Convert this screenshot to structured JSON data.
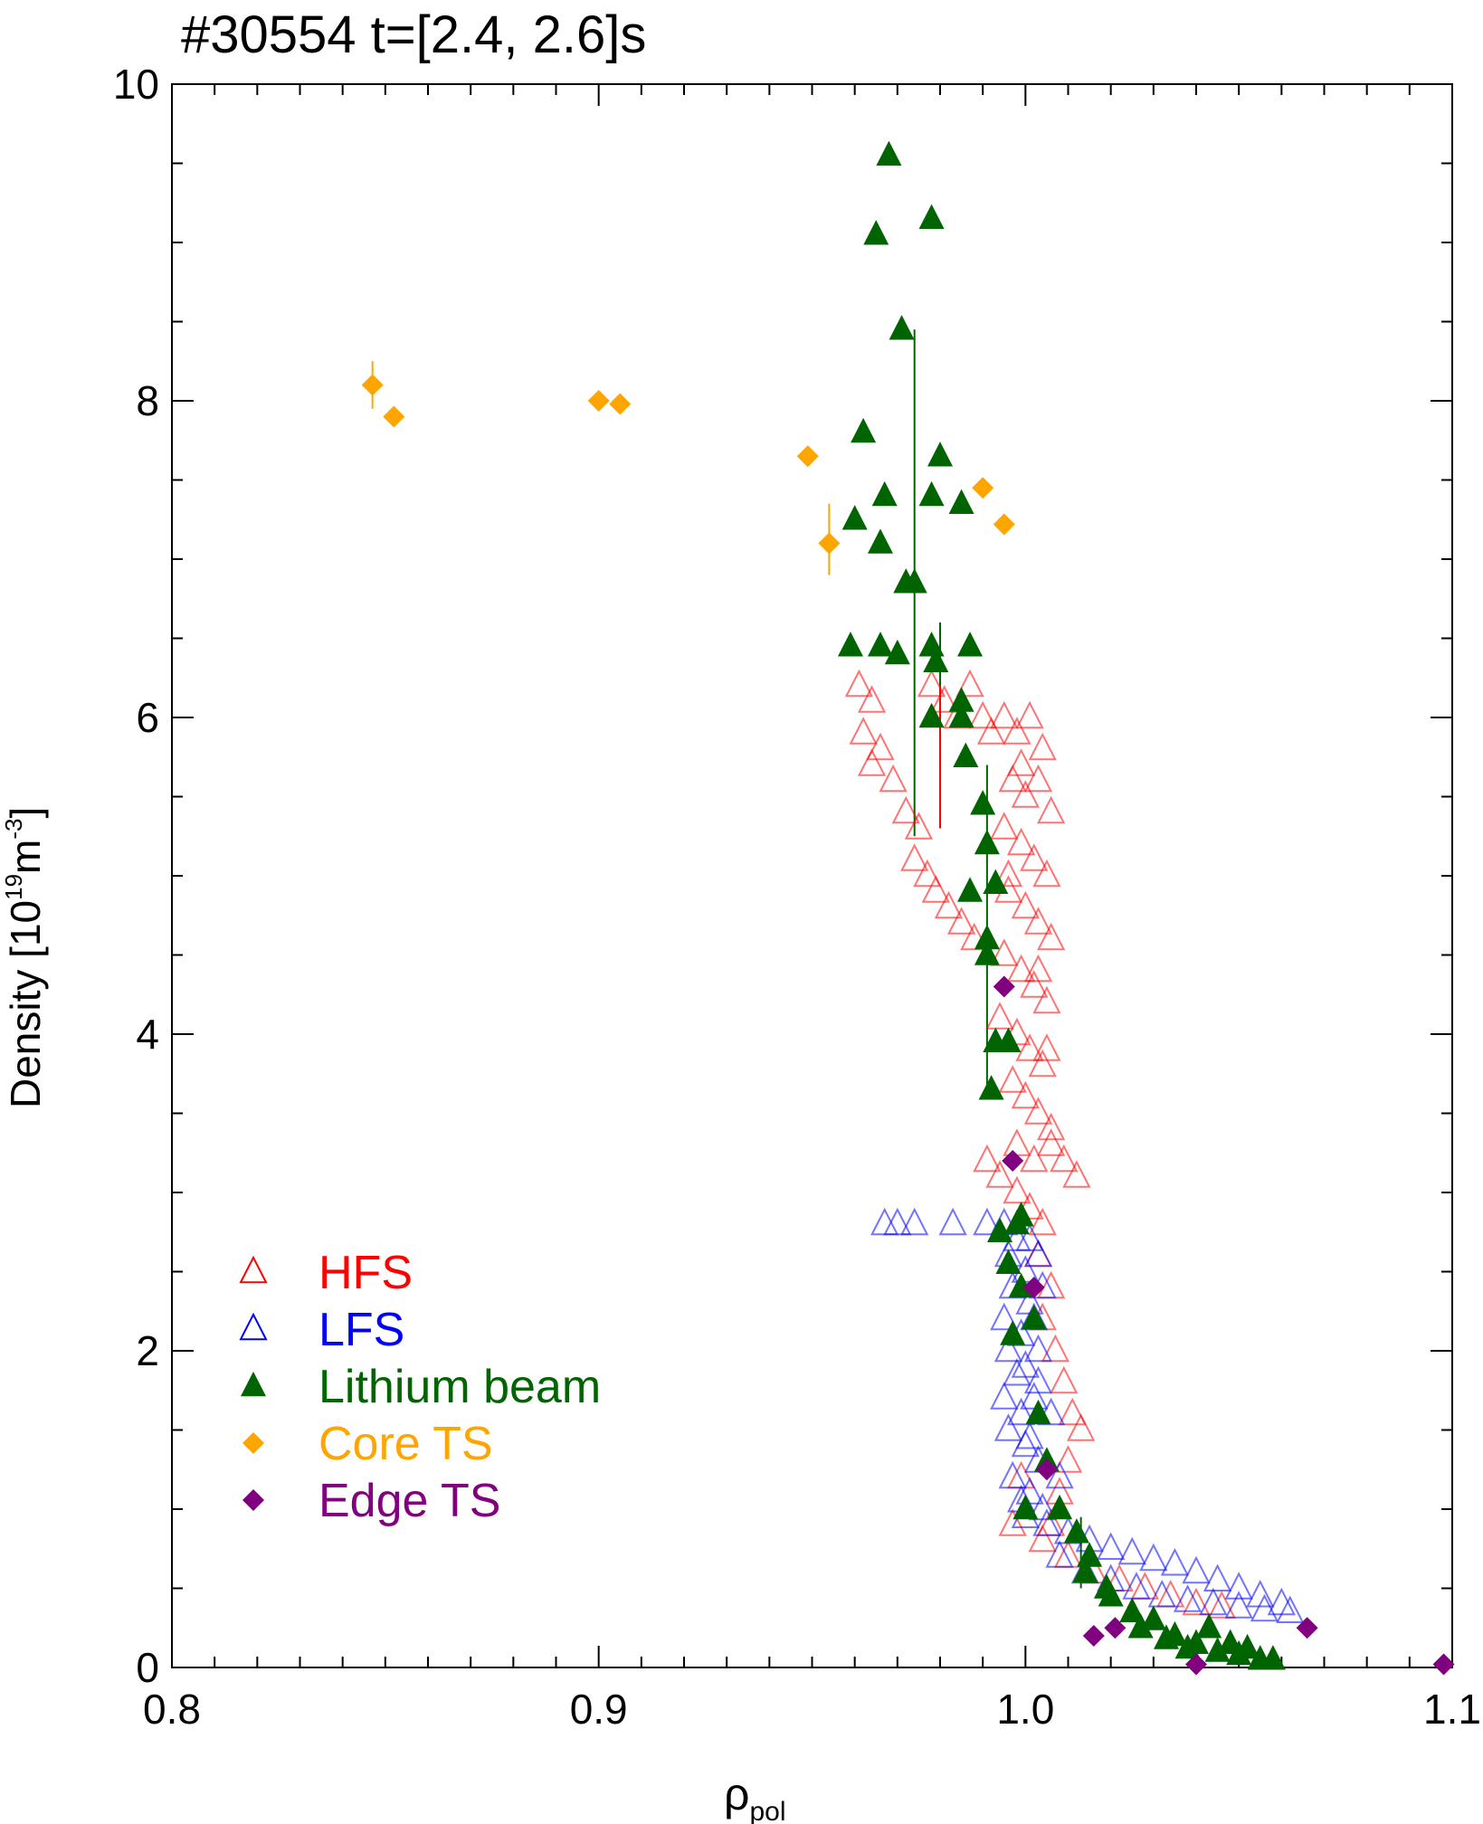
{
  "chart_data": {
    "type": "scatter",
    "title": "#30554 t=[2.4, 2.6]s",
    "xlabel": "ρ",
    "xlabel_sub": "pol",
    "ylabel": "Density [10",
    "ylabel_sup1": "19",
    "ylabel_mid": "m",
    "ylabel_sup2": "-3",
    "ylabel_end": "]",
    "xlim": [
      0.8,
      1.1
    ],
    "ylim": [
      0,
      10
    ],
    "x_ticks": [
      0.8,
      0.9,
      1.0,
      1.1
    ],
    "x_tick_labels": [
      "0.8",
      "0.9",
      "1.0",
      "1.1"
    ],
    "y_ticks": [
      0,
      2,
      4,
      6,
      8,
      10
    ],
    "y_tick_labels": [
      "0",
      "2",
      "4",
      "6",
      "8",
      "10"
    ],
    "grid": false,
    "legend_position": "bottom-left",
    "series": [
      {
        "name": "HFS",
        "marker": "triangle-open",
        "color": "#ff0000",
        "points": [
          [
            0.961,
            6.2
          ],
          [
            0.964,
            6.1
          ],
          [
            0.962,
            5.9
          ],
          [
            0.966,
            5.8
          ],
          [
            0.964,
            5.7
          ],
          [
            0.969,
            5.6
          ],
          [
            0.972,
            5.4
          ],
          [
            0.975,
            5.3
          ],
          [
            0.974,
            5.1
          ],
          [
            0.977,
            5.0
          ],
          [
            0.979,
            4.9
          ],
          [
            0.982,
            4.8
          ],
          [
            0.985,
            4.7
          ],
          [
            0.988,
            4.6
          ],
          [
            0.978,
            6.2
          ],
          [
            0.981,
            6.1
          ],
          [
            0.984,
            6.0
          ],
          [
            0.987,
            6.2
          ],
          [
            0.99,
            6.0
          ],
          [
            0.992,
            5.9
          ],
          [
            0.995,
            6.0
          ],
          [
            0.998,
            5.9
          ],
          [
            1.001,
            6.0
          ],
          [
            1.004,
            5.8
          ],
          [
            0.997,
            5.6
          ],
          [
            1.0,
            5.5
          ],
          [
            1.003,
            5.6
          ],
          [
            1.006,
            5.4
          ],
          [
            0.995,
            5.3
          ],
          [
            0.999,
            5.2
          ],
          [
            1.002,
            5.1
          ],
          [
            1.005,
            5.0
          ],
          [
            0.996,
            4.9
          ],
          [
            1.0,
            4.8
          ],
          [
            1.003,
            4.7
          ],
          [
            1.006,
            4.6
          ],
          [
            0.995,
            4.5
          ],
          [
            0.999,
            4.4
          ],
          [
            1.002,
            4.3
          ],
          [
            1.005,
            4.2
          ],
          [
            0.994,
            4.1
          ],
          [
            0.998,
            4.0
          ],
          [
            1.001,
            3.9
          ],
          [
            1.004,
            3.8
          ],
          [
            0.997,
            3.7
          ],
          [
            1.0,
            3.6
          ],
          [
            1.003,
            3.5
          ],
          [
            1.006,
            3.4
          ],
          [
            0.998,
            3.3
          ],
          [
            1.002,
            3.2
          ],
          [
            1.006,
            3.3
          ],
          [
            1.009,
            3.2
          ],
          [
            1.012,
            3.1
          ],
          [
            0.991,
            3.2
          ],
          [
            0.994,
            3.1
          ],
          [
            0.998,
            3.0
          ],
          [
            1.001,
            2.9
          ],
          [
            1.004,
            2.8
          ],
          [
            1.003,
            2.6
          ],
          [
            1.006,
            2.4
          ],
          [
            1.004,
            2.2
          ],
          [
            1.007,
            2.0
          ],
          [
            1.009,
            1.8
          ],
          [
            1.011,
            1.6
          ],
          [
            1.013,
            1.5
          ],
          [
            1.01,
            1.3
          ],
          [
            1.008,
            1.1
          ],
          [
            1.006,
            0.9
          ],
          [
            1.004,
            0.8
          ],
          [
            1.01,
            0.7
          ],
          [
            1.016,
            0.6
          ],
          [
            1.022,
            0.55
          ],
          [
            1.028,
            0.5
          ],
          [
            1.034,
            0.45
          ],
          [
            1.04,
            0.4
          ],
          [
            1.046,
            0.38
          ],
          [
            0.999,
            1.2
          ],
          [
            0.997,
            0.9
          ],
          [
            0.999,
            5.7
          ],
          [
            0.996,
            5.0
          ],
          [
            1.003,
            4.4
          ],
          [
            1.005,
            3.9
          ]
        ]
      },
      {
        "name": "LFS",
        "marker": "triangle-open",
        "color": "#0000ff",
        "points": [
          [
            0.967,
            2.8
          ],
          [
            0.97,
            2.8
          ],
          [
            0.974,
            2.8
          ],
          [
            0.983,
            2.8
          ],
          [
            0.991,
            2.8
          ],
          [
            0.995,
            2.8
          ],
          [
            0.998,
            2.7
          ],
          [
            1.001,
            2.7
          ],
          [
            0.996,
            2.6
          ],
          [
            1.0,
            2.5
          ],
          [
            1.003,
            2.6
          ],
          [
            0.997,
            2.4
          ],
          [
            1.001,
            2.3
          ],
          [
            1.004,
            2.4
          ],
          [
            0.995,
            2.2
          ],
          [
            0.999,
            2.1
          ],
          [
            1.002,
            2.2
          ],
          [
            0.996,
            2.0
          ],
          [
            1.0,
            1.9
          ],
          [
            1.003,
            1.8
          ],
          [
            0.995,
            1.7
          ],
          [
            0.999,
            1.6
          ],
          [
            1.002,
            1.7
          ],
          [
            0.996,
            1.5
          ],
          [
            1.0,
            1.4
          ],
          [
            1.003,
            1.3
          ],
          [
            0.997,
            1.2
          ],
          [
            1.001,
            1.1
          ],
          [
            1.004,
            1.0
          ],
          [
            1.0,
            0.95
          ],
          [
            1.005,
            0.9
          ],
          [
            1.01,
            0.85
          ],
          [
            1.015,
            0.8
          ],
          [
            1.02,
            0.75
          ],
          [
            1.025,
            0.72
          ],
          [
            1.03,
            0.68
          ],
          [
            1.035,
            0.65
          ],
          [
            1.04,
            0.6
          ],
          [
            1.045,
            0.55
          ],
          [
            1.05,
            0.5
          ],
          [
            1.055,
            0.45
          ],
          [
            1.06,
            0.4
          ],
          [
            1.008,
            0.7
          ],
          [
            1.014,
            0.6
          ],
          [
            1.02,
            0.55
          ],
          [
            1.026,
            0.5
          ],
          [
            1.032,
            0.45
          ],
          [
            1.038,
            0.42
          ],
          [
            1.044,
            0.4
          ],
          [
            1.05,
            0.38
          ],
          [
            1.056,
            0.36
          ],
          [
            1.062,
            0.35
          ],
          [
            1.003,
            2.0
          ],
          [
            1.006,
            1.6
          ],
          [
            1.008,
            1.2
          ],
          [
            0.998,
            1.85
          ],
          [
            1.001,
            1.45
          ],
          [
            0.999,
            1.05
          ]
        ]
      },
      {
        "name": "Lithium beam",
        "marker": "triangle-filled",
        "color": "#006400",
        "points": [
          [
            0.968,
            9.55
          ],
          [
            0.978,
            9.15
          ],
          [
            0.965,
            9.05
          ],
          [
            0.971,
            8.45
          ],
          [
            0.98,
            7.65
          ],
          [
            0.962,
            7.8
          ],
          [
            0.967,
            7.4
          ],
          [
            0.978,
            7.4
          ],
          [
            0.985,
            7.35
          ],
          [
            0.96,
            7.25
          ],
          [
            0.966,
            7.1
          ],
          [
            0.972,
            6.85
          ],
          [
            0.974,
            6.85
          ],
          [
            0.959,
            6.45
          ],
          [
            0.966,
            6.45
          ],
          [
            0.97,
            6.4
          ],
          [
            0.978,
            6.45
          ],
          [
            0.987,
            6.45
          ],
          [
            0.979,
            6.35
          ],
          [
            0.985,
            6.1
          ],
          [
            0.985,
            6.0
          ],
          [
            0.978,
            6.0
          ],
          [
            0.986,
            5.75
          ],
          [
            0.99,
            5.45
          ],
          [
            0.991,
            5.2
          ],
          [
            0.993,
            4.95
          ],
          [
            0.987,
            4.9
          ],
          [
            0.991,
            4.6
          ],
          [
            0.991,
            4.5
          ],
          [
            0.993,
            3.95
          ],
          [
            0.996,
            3.95
          ],
          [
            0.992,
            3.65
          ],
          [
            0.994,
            2.75
          ],
          [
            0.998,
            2.8
          ],
          [
            0.999,
            2.85
          ],
          [
            0.996,
            2.55
          ],
          [
            0.999,
            2.4
          ],
          [
            1.002,
            2.2
          ],
          [
            0.997,
            2.1
          ],
          [
            1.003,
            1.6
          ],
          [
            1.005,
            1.3
          ],
          [
            1.0,
            1.0
          ],
          [
            1.008,
            1.0
          ],
          [
            1.012,
            0.85
          ],
          [
            1.015,
            0.7
          ],
          [
            1.019,
            0.5
          ],
          [
            1.025,
            0.35
          ],
          [
            1.03,
            0.3
          ],
          [
            1.035,
            0.2
          ],
          [
            1.04,
            0.15
          ],
          [
            1.045,
            0.1
          ],
          [
            1.05,
            0.08
          ],
          [
            1.055,
            0.05
          ],
          [
            1.014,
            0.6
          ],
          [
            1.02,
            0.45
          ],
          [
            1.027,
            0.25
          ],
          [
            1.033,
            0.18
          ],
          [
            1.038,
            0.12
          ],
          [
            1.043,
            0.25
          ],
          [
            1.048,
            0.15
          ],
          [
            1.052,
            0.12
          ],
          [
            1.058,
            0.05
          ]
        ]
      },
      {
        "name": "Core TS",
        "marker": "diamond-filled",
        "color": "#ffa500",
        "points": [
          [
            0.847,
            8.1
          ],
          [
            0.852,
            7.9
          ],
          [
            0.9,
            8.0
          ],
          [
            0.905,
            7.98
          ],
          [
            0.949,
            7.65
          ],
          [
            0.954,
            7.1
          ],
          [
            0.99,
            7.45
          ],
          [
            0.995,
            7.22
          ]
        ]
      },
      {
        "name": "Edge TS",
        "marker": "diamond-filled",
        "color": "#800080",
        "points": [
          [
            0.995,
            4.3
          ],
          [
            0.997,
            3.2
          ],
          [
            1.002,
            2.4
          ],
          [
            1.005,
            1.25
          ],
          [
            1.016,
            0.2
          ],
          [
            1.021,
            0.25
          ],
          [
            1.04,
            0.02
          ],
          [
            1.066,
            0.25
          ],
          [
            1.098,
            0.02
          ]
        ]
      }
    ],
    "error_bars": [
      {
        "series": "Lithium beam",
        "x": 0.974,
        "low": 5.25,
        "high": 8.45
      },
      {
        "series": "Lithium beam",
        "x": 0.991,
        "low": 3.65,
        "high": 5.7
      },
      {
        "series": "Lithium beam",
        "x": 0.98,
        "low": 5.9,
        "high": 6.6
      },
      {
        "series": "Lithium beam",
        "x": 1.013,
        "low": 0.5,
        "high": 0.95
      },
      {
        "series": "HFS",
        "x": 0.98,
        "low": 5.3,
        "high": 6.2
      },
      {
        "series": "Core TS",
        "x": 0.847,
        "low": 7.95,
        "high": 8.25
      },
      {
        "series": "Core TS",
        "x": 0.954,
        "low": 6.9,
        "high": 7.35
      }
    ]
  }
}
